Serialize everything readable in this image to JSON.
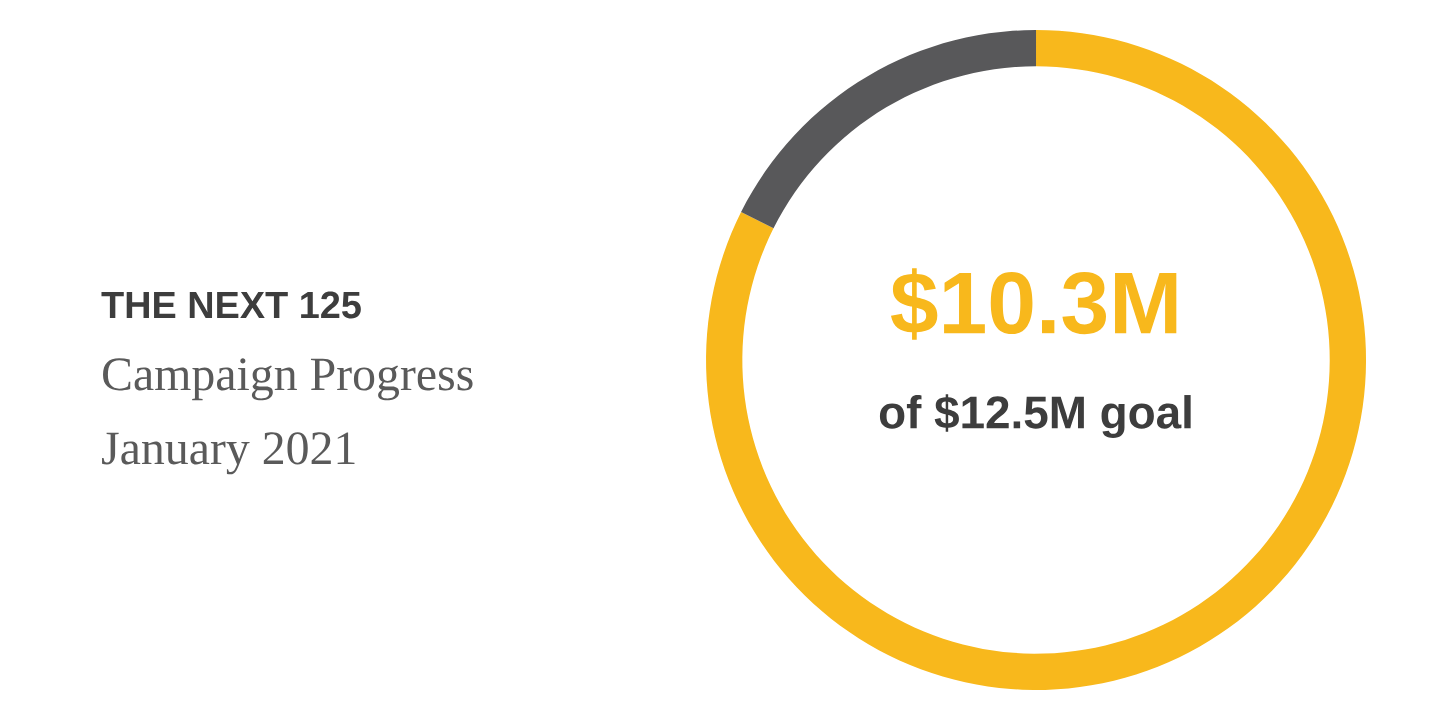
{
  "chart_data": {
    "type": "donut",
    "title": "THE NEXT 125",
    "subtitle": "Campaign Progress",
    "categories": [
      null,
      null
    ],
    "values": [
      82.4,
      17.6
    ],
    "colors": [
      "#f8b81c",
      "#58585a"
    ],
    "annotations": [
      "January 2021",
      "$10.3M",
      "of $12.5M goal"
    ]
  }
}
